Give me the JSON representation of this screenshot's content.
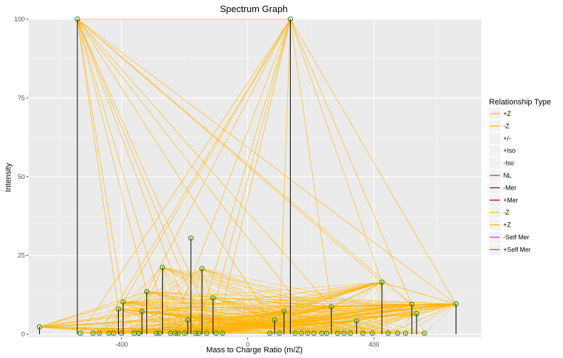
{
  "chart_data": {
    "type": "scatter",
    "title": "Spectrum Graph",
    "xlabel": "Mass to Charge Ratio (m/Z)",
    "ylabel": "Intensity",
    "xlim": [
      -695,
      740
    ],
    "ylim": [
      -1,
      100
    ],
    "x_ticks": [
      -400,
      0,
      400
    ],
    "y_ticks": [
      0,
      25,
      50,
      75,
      100
    ],
    "grid": true,
    "legend": {
      "title": "Relationship Type",
      "position": "right",
      "entries": [
        {
          "label": "+Z",
          "color": "#ffb300"
        },
        {
          "label": "-Z",
          "color": "#ffb300"
        },
        {
          "label": "+/-",
          "color": "#eeeeee"
        },
        {
          "label": "+Iso",
          "color": "#e6f2e6"
        },
        {
          "label": "-Iso",
          "color": "#e6f2e6"
        },
        {
          "label": "NL",
          "color": "#8b20ff"
        },
        {
          "label": "-Mer",
          "color": "#8b0000"
        },
        {
          "label": "+Mer",
          "color": "#8b0000"
        },
        {
          "label": "-Z",
          "color": "#ffb300"
        },
        {
          "label": "+Z",
          "color": "#ffb300"
        },
        {
          "label": "-Self Mer",
          "color": "#a040ff"
        },
        {
          "label": "+Self Mer",
          "color": "#a040ff"
        }
      ]
    },
    "peaks": [
      {
        "x": -660,
        "y": 2.3
      },
      {
        "x": -540,
        "y": 100
      },
      {
        "x": -530,
        "y": 0.3
      },
      {
        "x": -490,
        "y": 0.3
      },
      {
        "x": -470,
        "y": 0.3
      },
      {
        "x": -440,
        "y": 0.3
      },
      {
        "x": -425,
        "y": 0.3
      },
      {
        "x": -410,
        "y": 8
      },
      {
        "x": -400,
        "y": 0.3
      },
      {
        "x": -395,
        "y": 10.2
      },
      {
        "x": -360,
        "y": 0.3
      },
      {
        "x": -345,
        "y": 0.3
      },
      {
        "x": -345,
        "y": 0.3
      },
      {
        "x": -335,
        "y": 7.2
      },
      {
        "x": -320,
        "y": 13.5
      },
      {
        "x": -290,
        "y": 0.3
      },
      {
        "x": -280,
        "y": 0.3
      },
      {
        "x": -270,
        "y": 21.2
      },
      {
        "x": -245,
        "y": 0.3
      },
      {
        "x": -230,
        "y": 0.3
      },
      {
        "x": -220,
        "y": 0.3
      },
      {
        "x": -200,
        "y": 0.3
      },
      {
        "x": -190,
        "y": 4.5
      },
      {
        "x": -180,
        "y": 30.5
      },
      {
        "x": -165,
        "y": 0.3
      },
      {
        "x": -155,
        "y": 0.3
      },
      {
        "x": -145,
        "y": 20.8
      },
      {
        "x": -130,
        "y": 0.3
      },
      {
        "x": -110,
        "y": 11.5
      },
      {
        "x": -100,
        "y": 0.3
      },
      {
        "x": -80,
        "y": 0.3
      },
      {
        "x": 70,
        "y": 0.3
      },
      {
        "x": 85,
        "y": 4.5
      },
      {
        "x": 100,
        "y": 0.3
      },
      {
        "x": 115,
        "y": 7.3
      },
      {
        "x": 135,
        "y": 100
      },
      {
        "x": 150,
        "y": 0.3
      },
      {
        "x": 170,
        "y": 0.3
      },
      {
        "x": 190,
        "y": 0.3
      },
      {
        "x": 210,
        "y": 0.3
      },
      {
        "x": 235,
        "y": 0.3
      },
      {
        "x": 250,
        "y": 0.3
      },
      {
        "x": 265,
        "y": 8.7
      },
      {
        "x": 285,
        "y": 0.3
      },
      {
        "x": 305,
        "y": 0.3
      },
      {
        "x": 325,
        "y": 0.3
      },
      {
        "x": 345,
        "y": 4.2
      },
      {
        "x": 365,
        "y": 0.3
      },
      {
        "x": 395,
        "y": 0.3
      },
      {
        "x": 425,
        "y": 16.5
      },
      {
        "x": 445,
        "y": 0.3
      },
      {
        "x": 475,
        "y": 0.3
      },
      {
        "x": 500,
        "y": 0.3
      },
      {
        "x": 520,
        "y": 9.5
      },
      {
        "x": 535,
        "y": 6.5
      },
      {
        "x": 560,
        "y": 0.3
      },
      {
        "x": 660,
        "y": 9.6
      }
    ],
    "links": [
      [
        1,
        35
      ],
      [
        1,
        18
      ],
      [
        1,
        24
      ],
      [
        1,
        27
      ],
      [
        1,
        29
      ],
      [
        1,
        7
      ],
      [
        1,
        9
      ],
      [
        1,
        14
      ],
      [
        1,
        49
      ],
      [
        1,
        53
      ],
      [
        1,
        56
      ],
      [
        1,
        42
      ],
      [
        1,
        40
      ],
      [
        1,
        33
      ],
      [
        35,
        18
      ],
      [
        35,
        24
      ],
      [
        35,
        27
      ],
      [
        35,
        29
      ],
      [
        35,
        9
      ],
      [
        35,
        14
      ],
      [
        35,
        49
      ],
      [
        35,
        53
      ],
      [
        35,
        56
      ],
      [
        35,
        42
      ],
      [
        35,
        33
      ],
      [
        35,
        4
      ],
      [
        35,
        2
      ],
      [
        24,
        49
      ],
      [
        24,
        56
      ],
      [
        24,
        42
      ],
      [
        24,
        7
      ],
      [
        24,
        9
      ],
      [
        24,
        53
      ],
      [
        18,
        49
      ],
      [
        18,
        42
      ],
      [
        18,
        56
      ],
      [
        18,
        33
      ],
      [
        18,
        27
      ],
      [
        27,
        49
      ],
      [
        27,
        56
      ],
      [
        27,
        42
      ],
      [
        27,
        53
      ],
      [
        0,
        9
      ],
      [
        0,
        14
      ],
      [
        0,
        18
      ],
      [
        0,
        49
      ],
      [
        0,
        56
      ],
      [
        0,
        42
      ],
      [
        49,
        56
      ],
      [
        49,
        42
      ],
      [
        49,
        29
      ],
      [
        49,
        33
      ],
      [
        53,
        56
      ],
      [
        53,
        42
      ],
      [
        56,
        42
      ],
      [
        56,
        14
      ],
      [
        9,
        42
      ],
      [
        9,
        53
      ],
      [
        14,
        42
      ],
      [
        7,
        56
      ],
      [
        29,
        56
      ],
      [
        29,
        53
      ],
      [
        33,
        56
      ],
      [
        45,
        56
      ],
      [
        50,
        56
      ]
    ]
  }
}
